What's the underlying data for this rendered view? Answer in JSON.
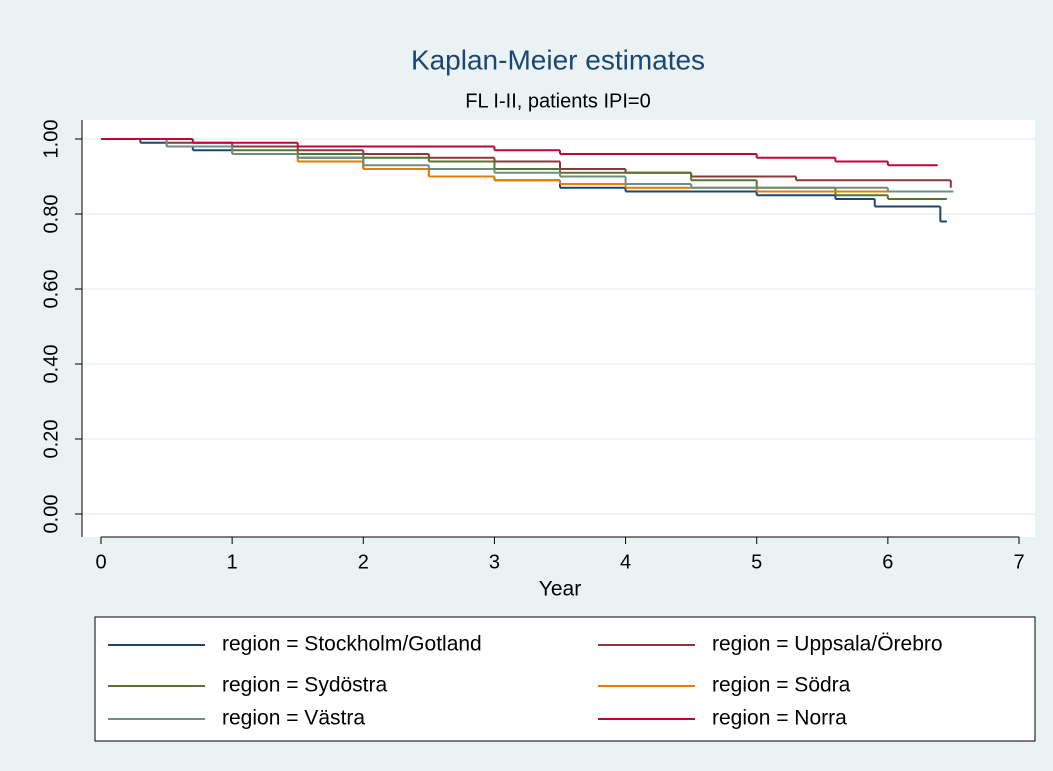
{
  "chart_data": {
    "type": "step",
    "title": "Kaplan-Meier estimates",
    "subtitle": "FL I-II, patients IPI=0",
    "x_label": "Year",
    "xlim": [
      0,
      7
    ],
    "xticks": [
      0,
      1,
      2,
      3,
      4,
      5,
      6,
      7
    ],
    "ylim": [
      0,
      1
    ],
    "yticks": [
      {
        "value": 0,
        "label": "0.00"
      },
      {
        "value": 0.2,
        "label": "0.20"
      },
      {
        "value": 0.4,
        "label": "0.40"
      },
      {
        "value": 0.6,
        "label": "0.60"
      },
      {
        "value": 0.8,
        "label": "0.80"
      },
      {
        "value": 1,
        "label": "1.00"
      }
    ],
    "grid": true,
    "legend": "bottom",
    "series": [
      {
        "name": "region = Stockholm/Gotland",
        "color": "#1a476f",
        "x": [
          0,
          0.3,
          0.5,
          0.7,
          1.0,
          1.5,
          2.0,
          2.5,
          3.0,
          3.5,
          4.0,
          5.0,
          5.6,
          5.9,
          6.4,
          6.45
        ],
        "values": [
          1.0,
          0.99,
          0.98,
          0.97,
          0.96,
          0.95,
          0.92,
          0.9,
          0.89,
          0.87,
          0.86,
          0.85,
          0.84,
          0.82,
          0.78,
          0.78
        ]
      },
      {
        "name": "region = Uppsala/Örebro",
        "color": "#90353b",
        "x": [
          0,
          0.5,
          1.0,
          1.5,
          2.0,
          2.5,
          3.0,
          3.5,
          4.0,
          4.5,
          5.3,
          6.48
        ],
        "values": [
          1.0,
          0.99,
          0.98,
          0.97,
          0.96,
          0.95,
          0.94,
          0.92,
          0.91,
          0.9,
          0.89,
          0.87
        ]
      },
      {
        "name": "region = Sydöstra",
        "color": "#55752f",
        "x": [
          0,
          0.5,
          1.0,
          1.5,
          2.0,
          2.5,
          3.0,
          3.5,
          4.5,
          5.0,
          5.6,
          6.0,
          6.45
        ],
        "values": [
          1.0,
          0.98,
          0.97,
          0.96,
          0.95,
          0.94,
          0.92,
          0.91,
          0.89,
          0.87,
          0.85,
          0.84,
          0.84
        ]
      },
      {
        "name": "region = Södra",
        "color": "#e37e00",
        "x": [
          0,
          0.5,
          1.0,
          1.5,
          2.0,
          2.5,
          3.0,
          3.5,
          4.0,
          5.0,
          6.45
        ],
        "values": [
          1.0,
          0.98,
          0.96,
          0.94,
          0.92,
          0.9,
          0.89,
          0.88,
          0.87,
          0.86,
          0.86
        ]
      },
      {
        "name": "region = Västra",
        "color": "#6e8e84",
        "x": [
          0,
          0.5,
          1.0,
          1.5,
          2.0,
          2.5,
          3.0,
          3.5,
          4.0,
          4.5,
          6.0,
          6.5
        ],
        "values": [
          1.0,
          0.98,
          0.96,
          0.95,
          0.93,
          0.92,
          0.91,
          0.9,
          0.88,
          0.87,
          0.86,
          0.86
        ]
      },
      {
        "name": "region = Norra",
        "color": "#c10534",
        "x": [
          0,
          0.7,
          1.5,
          3.0,
          3.5,
          5.0,
          5.6,
          6.0,
          6.38
        ],
        "values": [
          1.0,
          0.99,
          0.98,
          0.97,
          0.96,
          0.95,
          0.94,
          0.93,
          0.93
        ]
      }
    ]
  }
}
